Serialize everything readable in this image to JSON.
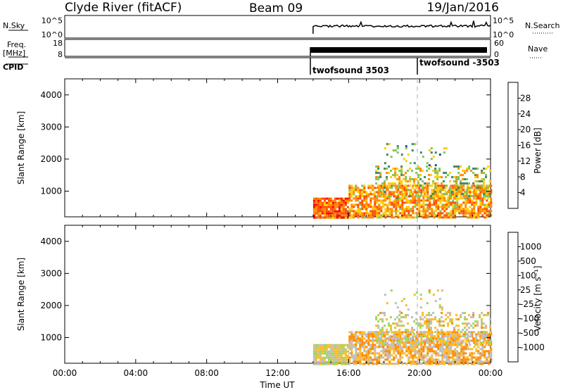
{
  "header": {
    "title_left": "Clyde River (fitACF)",
    "title_center": "Beam 09",
    "title_right": "19/Jan/2016"
  },
  "nsky_panel": {
    "left_label": "N.Sky",
    "left_ticks": [
      "10^5",
      "10^0"
    ],
    "right_ticks": [
      "10^5",
      "10^0"
    ],
    "right_label": "N.Search"
  },
  "freq_panel": {
    "left_label_1": "Freq.",
    "left_label_2": "[MHz]",
    "left_ticks": [
      "18",
      "8"
    ],
    "right_ticks": [
      "60",
      "0"
    ],
    "right_label": "Nave"
  },
  "cpid": {
    "label": "CPID",
    "entries": [
      {
        "label": "twofsound 3503",
        "start_hour": 14.0
      },
      {
        "label": "twofsound -3503",
        "start_hour": 20.0
      }
    ]
  },
  "colors": {
    "power_scale": [
      "#0019ff",
      "#214e9a",
      "#3a8a60",
      "#7fc35a",
      "#ffcc00",
      "#ff8800",
      "#ff4a00",
      "#ff0000"
    ],
    "velocity_scale": [
      "#ff0000",
      "#ff5500",
      "#ff8800",
      "#ffbb22",
      "#bdbdbd",
      "#9ad85a",
      "#3aa656",
      "#2d6f9a",
      "#1f3fb0"
    ]
  },
  "chart_data": [
    {
      "type": "heatmap",
      "name": "power",
      "ylabel": "Slant Range [km]",
      "yticks": [
        "1000",
        "2000",
        "3000",
        "4000"
      ],
      "ylim": [
        200,
        4500
      ],
      "xlim": [
        0,
        24
      ],
      "xticks": [
        "00:00",
        "04:00",
        "08:00",
        "12:00",
        "16:00",
        "20:00",
        "00:00"
      ],
      "xlabel": "",
      "colorbar": {
        "label": "Power [dB]",
        "ticks": [
          "4",
          "8",
          "12",
          "16",
          "20",
          "24",
          "28"
        ],
        "range": [
          0,
          32
        ]
      },
      "data_start_hour": 14.0,
      "data_end_hour": 24.0,
      "regions": [
        {
          "t0": 14.0,
          "t1": 16.0,
          "r0": 200,
          "r1": 800,
          "value": 26
        },
        {
          "t0": 16.0,
          "t1": 24.0,
          "r0": 200,
          "r1": 1200,
          "value": 22
        },
        {
          "t0": 17.5,
          "t1": 24.0,
          "r0": 800,
          "r1": 1800,
          "value": 16
        },
        {
          "t0": 18.0,
          "t1": 21.5,
          "r0": 1800,
          "r1": 2500,
          "value": 12
        }
      ]
    },
    {
      "type": "heatmap",
      "name": "velocity",
      "ylabel": "Slant Range [km]",
      "yticks": [
        "1000",
        "2000",
        "3000",
        "4000"
      ],
      "ylim": [
        200,
        4500
      ],
      "xlim": [
        0,
        24
      ],
      "xticks": [
        "00:00",
        "04:00",
        "08:00",
        "12:00",
        "16:00",
        "20:00",
        "00:00"
      ],
      "xlabel": "Time UT",
      "colorbar": {
        "label": "Velocity [m s⁻¹]",
        "ticks": [
          "1000",
          "500",
          "100",
          "25",
          "-25",
          "-100",
          "-500",
          "-1000"
        ],
        "range": [
          -1200,
          1200
        ]
      },
      "data_start_hour": 14.0,
      "data_end_hour": 24.0,
      "regions": [
        {
          "t0": 14.0,
          "t1": 16.0,
          "r0": 200,
          "r1": 800,
          "value": 0
        },
        {
          "t0": 16.0,
          "t1": 24.0,
          "r0": 200,
          "r1": 1200,
          "value": -300
        },
        {
          "t0": 17.5,
          "t1": 24.0,
          "r0": 800,
          "r1": 1800,
          "value": -100
        },
        {
          "t0": 18.0,
          "t1": 21.5,
          "r0": 1800,
          "r1": 2500,
          "value": -150
        }
      ]
    }
  ]
}
